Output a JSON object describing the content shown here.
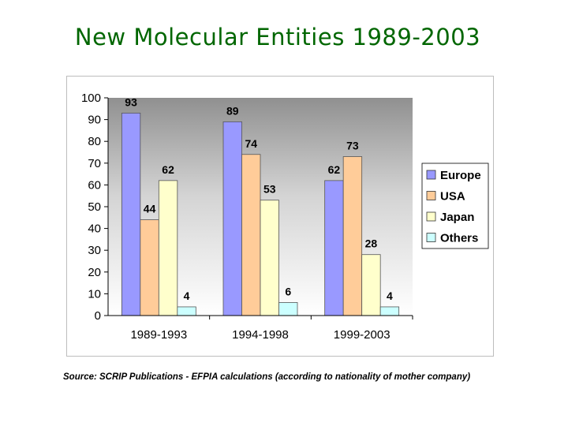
{
  "slide": {
    "title": "New Molecular Entities 1989-2003",
    "source": "Source: SCRIP Publications - EFPIA calculations (according to nationality of mother company)"
  },
  "chart_data": {
    "type": "bar",
    "title": "New Molecular Entities 1989-2003",
    "xlabel": "",
    "ylabel": "",
    "ylim": [
      0,
      100
    ],
    "yticks": [
      0,
      10,
      20,
      30,
      40,
      50,
      60,
      70,
      80,
      90,
      100
    ],
    "categories": [
      "1989-1993",
      "1994-1998",
      "1999-2003"
    ],
    "series": [
      {
        "name": "Europe",
        "values": [
          93,
          89,
          62
        ],
        "color": "#9999ff"
      },
      {
        "name": "USA",
        "values": [
          44,
          74,
          73
        ],
        "color": "#ffcc99"
      },
      {
        "name": "Japan",
        "values": [
          62,
          53,
          28
        ],
        "color": "#ffffcc"
      },
      {
        "name": "Others",
        "values": [
          4,
          6,
          4
        ],
        "color": "#ccffff"
      }
    ],
    "legend": "right",
    "grid": false,
    "plot_background": "gradient-gray"
  }
}
